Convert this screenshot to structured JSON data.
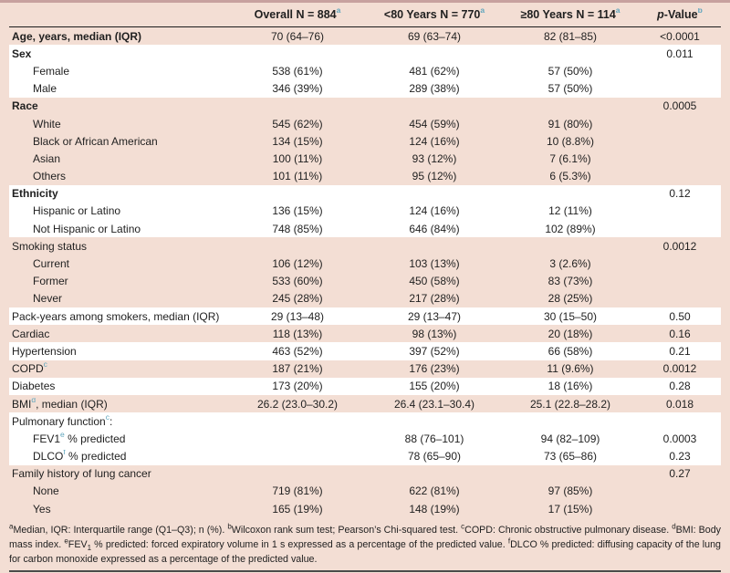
{
  "table": {
    "header": {
      "overall": {
        "label": "Overall N = 884",
        "sup": "a"
      },
      "under80": {
        "label": "<80 Years N = 770",
        "sup": "a"
      },
      "over80": {
        "label": "≥80 Years N = 114",
        "sup": "a"
      },
      "pvalue": {
        "italic": "p",
        "rest": "-Value",
        "sup": "b"
      }
    },
    "rows": [
      {
        "label": "Age, years, median (IQR)",
        "bold": true,
        "indent": false,
        "bg": "pink",
        "overall": "70 (64–76)",
        "under80": "69 (63–74)",
        "over80": "82 (81–85)",
        "p": "<0.0001"
      },
      {
        "label": "Sex",
        "bold": true,
        "indent": false,
        "bg": "white",
        "overall": "",
        "under80": "",
        "over80": "",
        "p": "0.011"
      },
      {
        "label": "Female",
        "bold": false,
        "indent": true,
        "bg": "white",
        "overall": "538 (61%)",
        "under80": "481 (62%)",
        "over80": "57 (50%)",
        "p": ""
      },
      {
        "label": "Male",
        "bold": false,
        "indent": true,
        "bg": "white",
        "overall": "346 (39%)",
        "under80": "289 (38%)",
        "over80": "57 (50%)",
        "p": ""
      },
      {
        "label": "Race",
        "bold": true,
        "indent": false,
        "bg": "pink",
        "overall": "",
        "under80": "",
        "over80": "",
        "p": "0.0005"
      },
      {
        "label": "White",
        "bold": false,
        "indent": true,
        "bg": "pink",
        "overall": "545 (62%)",
        "under80": "454 (59%)",
        "over80": "91 (80%)",
        "p": ""
      },
      {
        "label": "Black or African American",
        "bold": false,
        "indent": true,
        "bg": "pink",
        "overall": "134 (15%)",
        "under80": "124 (16%)",
        "over80": "10 (8.8%)",
        "p": ""
      },
      {
        "label": "Asian",
        "bold": false,
        "indent": true,
        "bg": "pink",
        "overall": "100 (11%)",
        "under80": "93 (12%)",
        "over80": "7 (6.1%)",
        "p": ""
      },
      {
        "label": "Others",
        "bold": false,
        "indent": true,
        "bg": "pink",
        "overall": "101 (11%)",
        "under80": "95 (12%)",
        "over80": "6 (5.3%)",
        "p": ""
      },
      {
        "label": "Ethnicity",
        "bold": true,
        "indent": false,
        "bg": "white",
        "overall": "",
        "under80": "",
        "over80": "",
        "p": "0.12"
      },
      {
        "label": "Hispanic or Latino",
        "bold": false,
        "indent": true,
        "bg": "white",
        "overall": "136 (15%)",
        "under80": "124 (16%)",
        "over80": "12 (11%)",
        "p": ""
      },
      {
        "label": "Not Hispanic or Latino",
        "bold": false,
        "indent": true,
        "bg": "white",
        "overall": "748 (85%)",
        "under80": "646 (84%)",
        "over80": "102 (89%)",
        "p": ""
      },
      {
        "label": "Smoking status",
        "bold": false,
        "indent": false,
        "bg": "pink",
        "overall": "",
        "under80": "",
        "over80": "",
        "p": "0.0012"
      },
      {
        "label": "Current",
        "bold": false,
        "indent": true,
        "bg": "pink",
        "overall": "106 (12%)",
        "under80": "103 (13%)",
        "over80": "3 (2.6%)",
        "p": ""
      },
      {
        "label": "Former",
        "bold": false,
        "indent": true,
        "bg": "pink",
        "overall": "533 (60%)",
        "under80": "450 (58%)",
        "over80": "83 (73%)",
        "p": ""
      },
      {
        "label": "Never",
        "bold": false,
        "indent": true,
        "bg": "pink",
        "overall": "245 (28%)",
        "under80": "217 (28%)",
        "over80": "28 (25%)",
        "p": ""
      },
      {
        "label": "Pack-years among smokers, median (IQR)",
        "bold": false,
        "indent": false,
        "bg": "white",
        "overall": "29 (13–48)",
        "under80": "29 (13–47)",
        "over80": "30 (15–50)",
        "p": "0.50"
      },
      {
        "label": "Cardiac",
        "bold": false,
        "indent": false,
        "bg": "pink",
        "overall": "118 (13%)",
        "under80": "98 (13%)",
        "over80": "20 (18%)",
        "p": "0.16"
      },
      {
        "label": "Hypertension",
        "bold": false,
        "indent": false,
        "bg": "white",
        "overall": "463 (52%)",
        "under80": "397 (52%)",
        "over80": "66 (58%)",
        "p": "0.21"
      },
      {
        "label": "COPD",
        "sup": "c",
        "post": "",
        "bold": false,
        "indent": false,
        "bg": "pink",
        "overall": "187 (21%)",
        "under80": "176 (23%)",
        "over80": "11 (9.6%)",
        "p": "0.0012"
      },
      {
        "label": "Diabetes",
        "bold": false,
        "indent": false,
        "bg": "white",
        "overall": "173 (20%)",
        "under80": "155 (20%)",
        "over80": "18 (16%)",
        "p": "0.28"
      },
      {
        "label": "BMI",
        "sup": "d",
        "post": ", median (IQR)",
        "bold": false,
        "indent": false,
        "bg": "pink",
        "overall": "26.2 (23.0–30.2)",
        "under80": "26.4 (23.1–30.4)",
        "over80": "25.1 (22.8–28.2)",
        "p": "0.018"
      },
      {
        "label": "Pulmonary function",
        "sup": "c",
        "post": ":",
        "bold": false,
        "indent": false,
        "bg": "white",
        "overall": "",
        "under80": "",
        "over80": "",
        "p": ""
      },
      {
        "label": "FEV1",
        "sup": "e",
        "post": " % predicted",
        "bold": false,
        "indent": true,
        "bg": "white",
        "overall": "",
        "under80": "88 (76–101)",
        "over80": "94 (82–109)",
        "p": "0.0003"
      },
      {
        "label": "DLCO",
        "sup": "f",
        "post": " % predicted",
        "bold": false,
        "indent": true,
        "bg": "white",
        "overall": "",
        "under80": "78 (65–90)",
        "over80": "73 (65–86)",
        "p": "0.23"
      },
      {
        "label": "Family history of lung cancer",
        "bold": false,
        "indent": false,
        "bg": "pink",
        "overall": "",
        "under80": "",
        "over80": "",
        "p": "0.27"
      },
      {
        "label": "None",
        "bold": false,
        "indent": true,
        "bg": "pink",
        "overall": "719 (81%)",
        "under80": "622 (81%)",
        "over80": "97 (85%)",
        "p": ""
      },
      {
        "label": "Yes",
        "bold": false,
        "indent": true,
        "bg": "pink",
        "overall": "165 (19%)",
        "under80": "148 (19%)",
        "over80": "17 (15%)",
        "p": ""
      }
    ],
    "footnote_tokens": [
      {
        "t": "sup",
        "v": "a"
      },
      {
        "t": "text",
        "v": "Median, IQR: Interquartile range (Q1–Q3); n (%). "
      },
      {
        "t": "sup",
        "v": "b"
      },
      {
        "t": "text",
        "v": "Wilcoxon rank sum test; Pearson’s Chi-squared test. "
      },
      {
        "t": "sup",
        "v": "c"
      },
      {
        "t": "text",
        "v": "COPD: Chronic obstructive pulmonary disease. "
      },
      {
        "t": "sup",
        "v": "d"
      },
      {
        "t": "text",
        "v": "BMI: Body mass index. "
      },
      {
        "t": "sup",
        "v": "e"
      },
      {
        "t": "text",
        "v": "FEV"
      },
      {
        "t": "sub",
        "v": "1"
      },
      {
        "t": "text",
        "v": " % predicted: forced expiratory volume in 1 s expressed as a percentage of the predicted value. "
      },
      {
        "t": "sup",
        "v": "f"
      },
      {
        "t": "text",
        "v": "DLCO % predicted: diffusing capacity of the lung for carbon monoxide expressed as a percentage of the predicted value."
      }
    ],
    "colors": {
      "row_pink": "#f3ded4",
      "row_white": "#ffffff",
      "footnote_marker": "#5fa5bd",
      "top_border": "#c7a19f",
      "header_rule": "#1c1c1c",
      "bottom_rule": "#4a4a4a"
    }
  }
}
